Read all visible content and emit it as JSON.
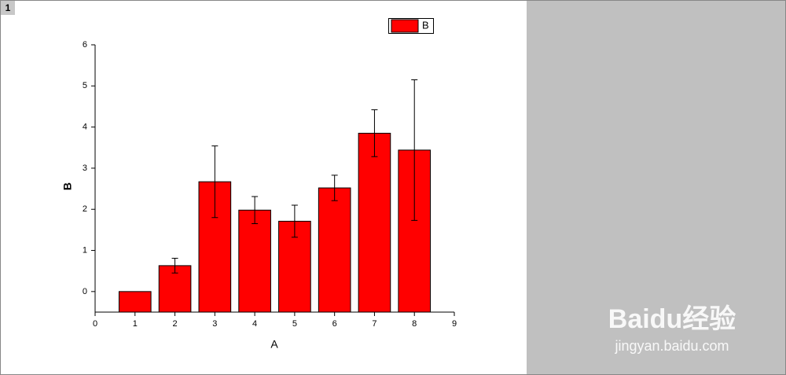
{
  "page_label": "1",
  "watermark": {
    "brand": "Baidu经验",
    "url": "jingyan.baidu.com"
  },
  "chart_data": {
    "type": "bar",
    "x_label": "A",
    "y_label": "B",
    "x": [
      1,
      2,
      3,
      4,
      5,
      6,
      7,
      8
    ],
    "series": [
      {
        "name": "B",
        "color": "#ff0000",
        "values": [
          0.0,
          0.63,
          2.67,
          1.98,
          1.71,
          2.52,
          3.85,
          3.44
        ],
        "errors": [
          0,
          0.18,
          0.87,
          0.33,
          0.39,
          0.31,
          0.57,
          1.71
        ]
      }
    ],
    "bar_width": 0.8,
    "xlim": [
      0,
      9
    ],
    "xticks": [
      0,
      1,
      2,
      3,
      4,
      5,
      6,
      7,
      8,
      9
    ],
    "ylim": [
      -0.5,
      6
    ],
    "yticks": [
      0,
      1,
      2,
      3,
      4,
      5,
      6
    ],
    "grid": false,
    "legend": "top-right"
  }
}
